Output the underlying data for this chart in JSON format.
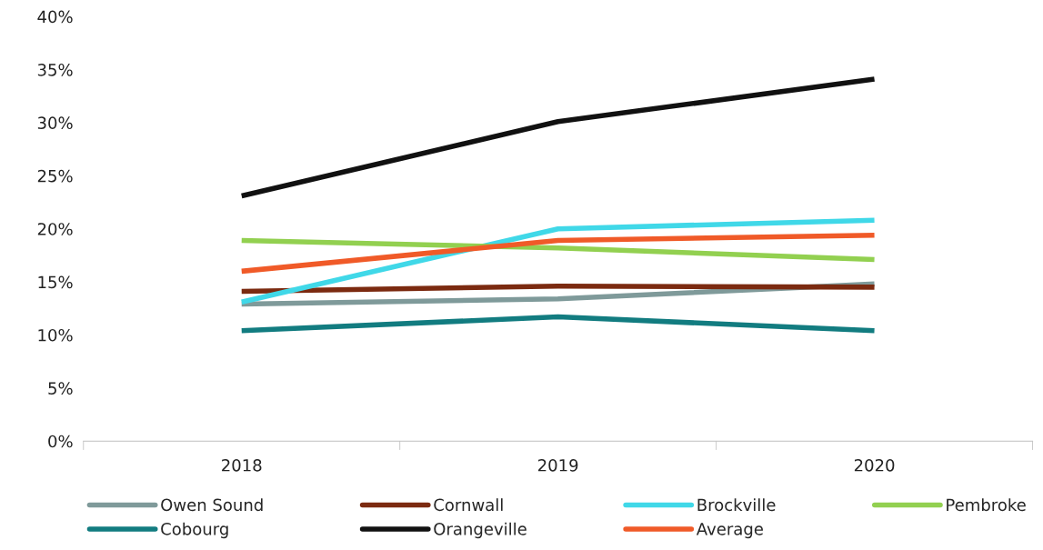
{
  "chart_data": {
    "type": "line",
    "categories": [
      "2018",
      "2019",
      "2020"
    ],
    "series": [
      {
        "name": "Owen Sound",
        "color": "#7f9a9a",
        "values": [
          12.9,
          13.4,
          14.8
        ]
      },
      {
        "name": "Cornwall",
        "color": "#7b2a10",
        "values": [
          14.1,
          14.6,
          14.5
        ]
      },
      {
        "name": "Brockville",
        "color": "#40d8e8",
        "values": [
          13.1,
          20.0,
          20.8
        ]
      },
      {
        "name": "Pembroke",
        "color": "#92d050",
        "values": [
          18.9,
          18.2,
          17.1
        ]
      },
      {
        "name": "Cobourg",
        "color": "#127c80",
        "values": [
          10.4,
          11.7,
          10.4
        ]
      },
      {
        "name": "Orangeville",
        "color": "#111111",
        "values": [
          23.1,
          30.1,
          34.1
        ]
      },
      {
        "name": "Average",
        "color": "#f05a28",
        "values": [
          16.0,
          18.9,
          19.4
        ]
      }
    ],
    "ylim": [
      0,
      40
    ],
    "yticks": [
      {
        "value": 0,
        "label": "0%"
      },
      {
        "value": 5,
        "label": "5%"
      },
      {
        "value": 10,
        "label": "10%"
      },
      {
        "value": 15,
        "label": "15%"
      },
      {
        "value": 20,
        "label": "20%"
      },
      {
        "value": 25,
        "label": "25%"
      },
      {
        "value": 30,
        "label": "30%"
      },
      {
        "value": 35,
        "label": "35%"
      },
      {
        "value": 40,
        "label": "40%"
      }
    ],
    "grid": false,
    "legend": "bottom",
    "marker": "none",
    "line_style": "solid"
  }
}
